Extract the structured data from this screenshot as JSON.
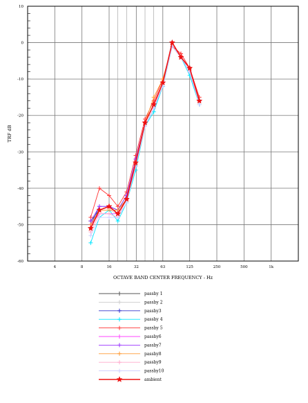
{
  "chart_data": {
    "type": "line",
    "title": "",
    "xlabel": "OCTAVE BAND CENTER FREQUENCY - Hz",
    "ylabel": "TRF dB",
    "x_scale": "log2",
    "ylim": [
      -60,
      10
    ],
    "grid": true,
    "legend_position": "bottom",
    "x_ticks": [
      {
        "value": 4,
        "label": "4"
      },
      {
        "value": 8,
        "label": "8"
      },
      {
        "value": 16,
        "label": "16"
      },
      {
        "value": 32,
        "label": "32"
      },
      {
        "value": 63,
        "label": "63"
      },
      {
        "value": 125,
        "label": "125"
      },
      {
        "value": 250,
        "label": "250"
      },
      {
        "value": 500,
        "label": "500"
      },
      {
        "value": 1000,
        "label": "1k"
      }
    ],
    "y_ticks": [
      {
        "value": 10,
        "label": "10"
      },
      {
        "value": 0,
        "label": "0"
      },
      {
        "value": -10,
        "label": "-10"
      },
      {
        "value": -20,
        "label": "-20"
      },
      {
        "value": -30,
        "label": "-30"
      },
      {
        "value": -40,
        "label": "-40"
      },
      {
        "value": -50,
        "label": "-50"
      },
      {
        "value": -60,
        "label": "-60"
      }
    ],
    "x": [
      10,
      12.5,
      16,
      20,
      25,
      31.5,
      40,
      50,
      63,
      80,
      100,
      125,
      160
    ],
    "series": [
      {
        "name": "passby 1",
        "color": "#555555",
        "marker": "plus",
        "values": [
          -49,
          -46,
          -45,
          -46,
          -42,
          -33,
          -22,
          -17,
          -11,
          -1,
          -4,
          -7,
          -16
        ]
      },
      {
        "name": "passby 2",
        "color": "#cccccc",
        "marker": "plus",
        "values": [
          -51,
          -46,
          -46,
          -47,
          -43,
          -34,
          -22,
          -17,
          -11,
          -1,
          -4,
          -7,
          -16
        ]
      },
      {
        "name": "passby3",
        "color": "#3333cc",
        "marker": "plus",
        "values": [
          -50,
          -45,
          -45,
          -46,
          -43,
          -34,
          -23,
          -18,
          -12,
          -1,
          -4,
          -8,
          -17
        ]
      },
      {
        "name": "passby 4",
        "color": "#00e5ff",
        "marker": "plus",
        "values": [
          -55,
          -48,
          -46,
          -49,
          -44,
          -35,
          -23,
          -19,
          -12,
          -1,
          -4,
          -9,
          -17
        ]
      },
      {
        "name": "passby 5",
        "color": "#ff3333",
        "marker": "plus",
        "values": [
          -48,
          -40,
          -42,
          -45,
          -41,
          -31,
          -21,
          -16,
          -10,
          -1,
          -3,
          -7,
          -15
        ]
      },
      {
        "name": "passby6",
        "color": "#ff44ff",
        "marker": "plus",
        "values": [
          -50,
          -47,
          -47,
          -47,
          -43,
          -33,
          -22,
          -17,
          -11,
          -1,
          -4,
          -8,
          -16
        ]
      },
      {
        "name": "passby7",
        "color": "#9933ff",
        "marker": "plus",
        "values": [
          -49,
          -45,
          -45,
          -46,
          -42,
          -32,
          -22,
          -17,
          -11,
          -1,
          -4,
          -7,
          -16
        ]
      },
      {
        "name": "passby8",
        "color": "#ff9933",
        "marker": "plus",
        "values": [
          -50,
          -46,
          -46,
          -46,
          -43,
          -33,
          -22,
          -15,
          -10,
          -1,
          -4,
          -7,
          -16
        ]
      },
      {
        "name": "passby9",
        "color": "#ffaacc",
        "marker": "plus",
        "values": [
          -52,
          -47,
          -47,
          -48,
          -43,
          -34,
          -23,
          -18,
          -11,
          -1,
          -4,
          -8,
          -16
        ]
      },
      {
        "name": "passby10",
        "color": "#ccccff",
        "marker": "plus",
        "values": [
          -53,
          -48,
          -48,
          -48,
          -44,
          -34,
          -23,
          -18,
          -12,
          -1,
          -4,
          -8,
          -17
        ]
      },
      {
        "name": "ambient",
        "color": "#ee1111",
        "marker": "star",
        "width": 1.6,
        "values": [
          -51,
          -46,
          -45,
          -47,
          -43,
          -33,
          -22,
          -17,
          -11,
          0,
          -4,
          -7,
          -16
        ]
      }
    ]
  }
}
